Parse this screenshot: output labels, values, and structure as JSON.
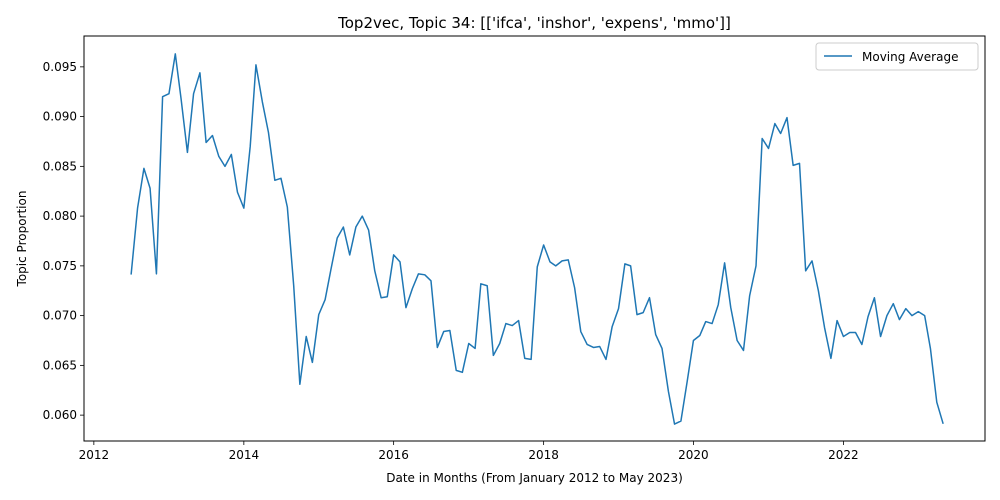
{
  "chart_data": {
    "type": "line",
    "title": "Top2vec, Topic 34: [['ifca', 'inshor', 'expens', 'mmo']]",
    "xlabel": "Date in Months (From January 2012 to May 2023)",
    "ylabel": "Topic Proportion",
    "xlim": [
      "2011-11-14",
      "2023-11-22"
    ],
    "ylim": [
      0.0574,
      0.0981
    ],
    "x_ticks": [
      {
        "value": "2012-01",
        "label": "2012"
      },
      {
        "value": "2014-01",
        "label": "2014"
      },
      {
        "value": "2016-01",
        "label": "2016"
      },
      {
        "value": "2018-01",
        "label": "2018"
      },
      {
        "value": "2020-01",
        "label": "2020"
      },
      {
        "value": "2022-01",
        "label": "2022"
      }
    ],
    "y_ticks": [
      {
        "value": 0.06,
        "label": "0.060"
      },
      {
        "value": 0.065,
        "label": "0.065"
      },
      {
        "value": 0.07,
        "label": "0.070"
      },
      {
        "value": 0.075,
        "label": "0.075"
      },
      {
        "value": 0.08,
        "label": "0.080"
      },
      {
        "value": 0.085,
        "label": "0.085"
      },
      {
        "value": 0.09,
        "label": "0.090"
      },
      {
        "value": 0.095,
        "label": "0.095"
      }
    ],
    "grid": false,
    "legend_position": "top-right",
    "series": [
      {
        "name": "Moving Average",
        "color": "#1f77b4",
        "x": [
          "2012-07",
          "2012-08",
          "2012-09",
          "2012-10",
          "2012-11",
          "2012-12",
          "2013-01",
          "2013-02",
          "2013-03",
          "2013-04",
          "2013-05",
          "2013-06",
          "2013-07",
          "2013-08",
          "2013-09",
          "2013-10",
          "2013-11",
          "2013-12",
          "2014-01",
          "2014-02",
          "2014-03",
          "2014-04",
          "2014-05",
          "2014-06",
          "2014-07",
          "2014-08",
          "2014-09",
          "2014-10",
          "2014-11",
          "2014-12",
          "2015-01",
          "2015-02",
          "2015-03",
          "2015-04",
          "2015-05",
          "2015-06",
          "2015-07",
          "2015-08",
          "2015-09",
          "2015-10",
          "2015-11",
          "2015-12",
          "2016-01",
          "2016-02",
          "2016-03",
          "2016-04",
          "2016-05",
          "2016-06",
          "2016-07",
          "2016-08",
          "2016-09",
          "2016-10",
          "2016-11",
          "2016-12",
          "2017-01",
          "2017-02",
          "2017-03",
          "2017-04",
          "2017-05",
          "2017-06",
          "2017-07",
          "2017-08",
          "2017-09",
          "2017-10",
          "2017-11",
          "2017-12",
          "2018-01",
          "2018-02",
          "2018-03",
          "2018-04",
          "2018-05",
          "2018-06",
          "2018-07",
          "2018-08",
          "2018-09",
          "2018-10",
          "2018-11",
          "2018-12",
          "2019-01",
          "2019-02",
          "2019-03",
          "2019-04",
          "2019-05",
          "2019-06",
          "2019-07",
          "2019-08",
          "2019-09",
          "2019-10",
          "2019-11",
          "2019-12",
          "2020-01",
          "2020-02",
          "2020-03",
          "2020-04",
          "2020-05",
          "2020-06",
          "2020-07",
          "2020-08",
          "2020-09",
          "2020-10",
          "2020-11",
          "2020-12",
          "2021-01",
          "2021-02",
          "2021-03",
          "2021-04",
          "2021-05",
          "2021-06",
          "2021-07",
          "2021-08",
          "2021-09",
          "2021-10",
          "2021-11",
          "2021-12",
          "2022-01",
          "2022-02",
          "2022-03",
          "2022-04",
          "2022-05",
          "2022-06",
          "2022-07",
          "2022-08",
          "2022-09",
          "2022-10",
          "2022-11",
          "2022-12",
          "2023-01",
          "2023-02",
          "2023-03",
          "2023-04",
          "2023-05"
        ],
        "y": [
          0.0742,
          0.0808,
          0.0848,
          0.0828,
          0.0742,
          0.092,
          0.0923,
          0.0963,
          0.0918,
          0.0864,
          0.0923,
          0.0944,
          0.0874,
          0.0881,
          0.086,
          0.085,
          0.0862,
          0.0824,
          0.0808,
          0.087,
          0.0952,
          0.0915,
          0.0884,
          0.0836,
          0.0838,
          0.0809,
          0.073,
          0.0631,
          0.0679,
          0.0653,
          0.0701,
          0.0716,
          0.0746,
          0.0778,
          0.0789,
          0.0761,
          0.0789,
          0.08,
          0.0786,
          0.0745,
          0.0718,
          0.0719,
          0.0761,
          0.0754,
          0.0708,
          0.0727,
          0.0742,
          0.0741,
          0.0735,
          0.0668,
          0.0684,
          0.0685,
          0.0645,
          0.0643,
          0.0672,
          0.0667,
          0.0732,
          0.073,
          0.066,
          0.0672,
          0.0692,
          0.069,
          0.0695,
          0.0657,
          0.0656,
          0.0749,
          0.0771,
          0.0754,
          0.075,
          0.0755,
          0.0756,
          0.0728,
          0.0684,
          0.0671,
          0.0668,
          0.0669,
          0.0656,
          0.0689,
          0.0707,
          0.0752,
          0.075,
          0.0701,
          0.0703,
          0.0718,
          0.0681,
          0.0667,
          0.0624,
          0.0591,
          0.0594,
          0.0633,
          0.0675,
          0.068,
          0.0694,
          0.0692,
          0.0711,
          0.0753,
          0.0708,
          0.0675,
          0.0665,
          0.072,
          0.075,
          0.0878,
          0.0868,
          0.0893,
          0.0883,
          0.0899,
          0.0851,
          0.0853,
          0.0745,
          0.0755,
          0.0725,
          0.0688,
          0.0657,
          0.0695,
          0.0679,
          0.0683,
          0.0683,
          0.0671,
          0.0699,
          0.0718,
          0.0679,
          0.07,
          0.0712,
          0.0696,
          0.0707,
          0.07,
          0.0704,
          0.07,
          0.0667,
          0.0613,
          0.0592
        ]
      }
    ]
  }
}
